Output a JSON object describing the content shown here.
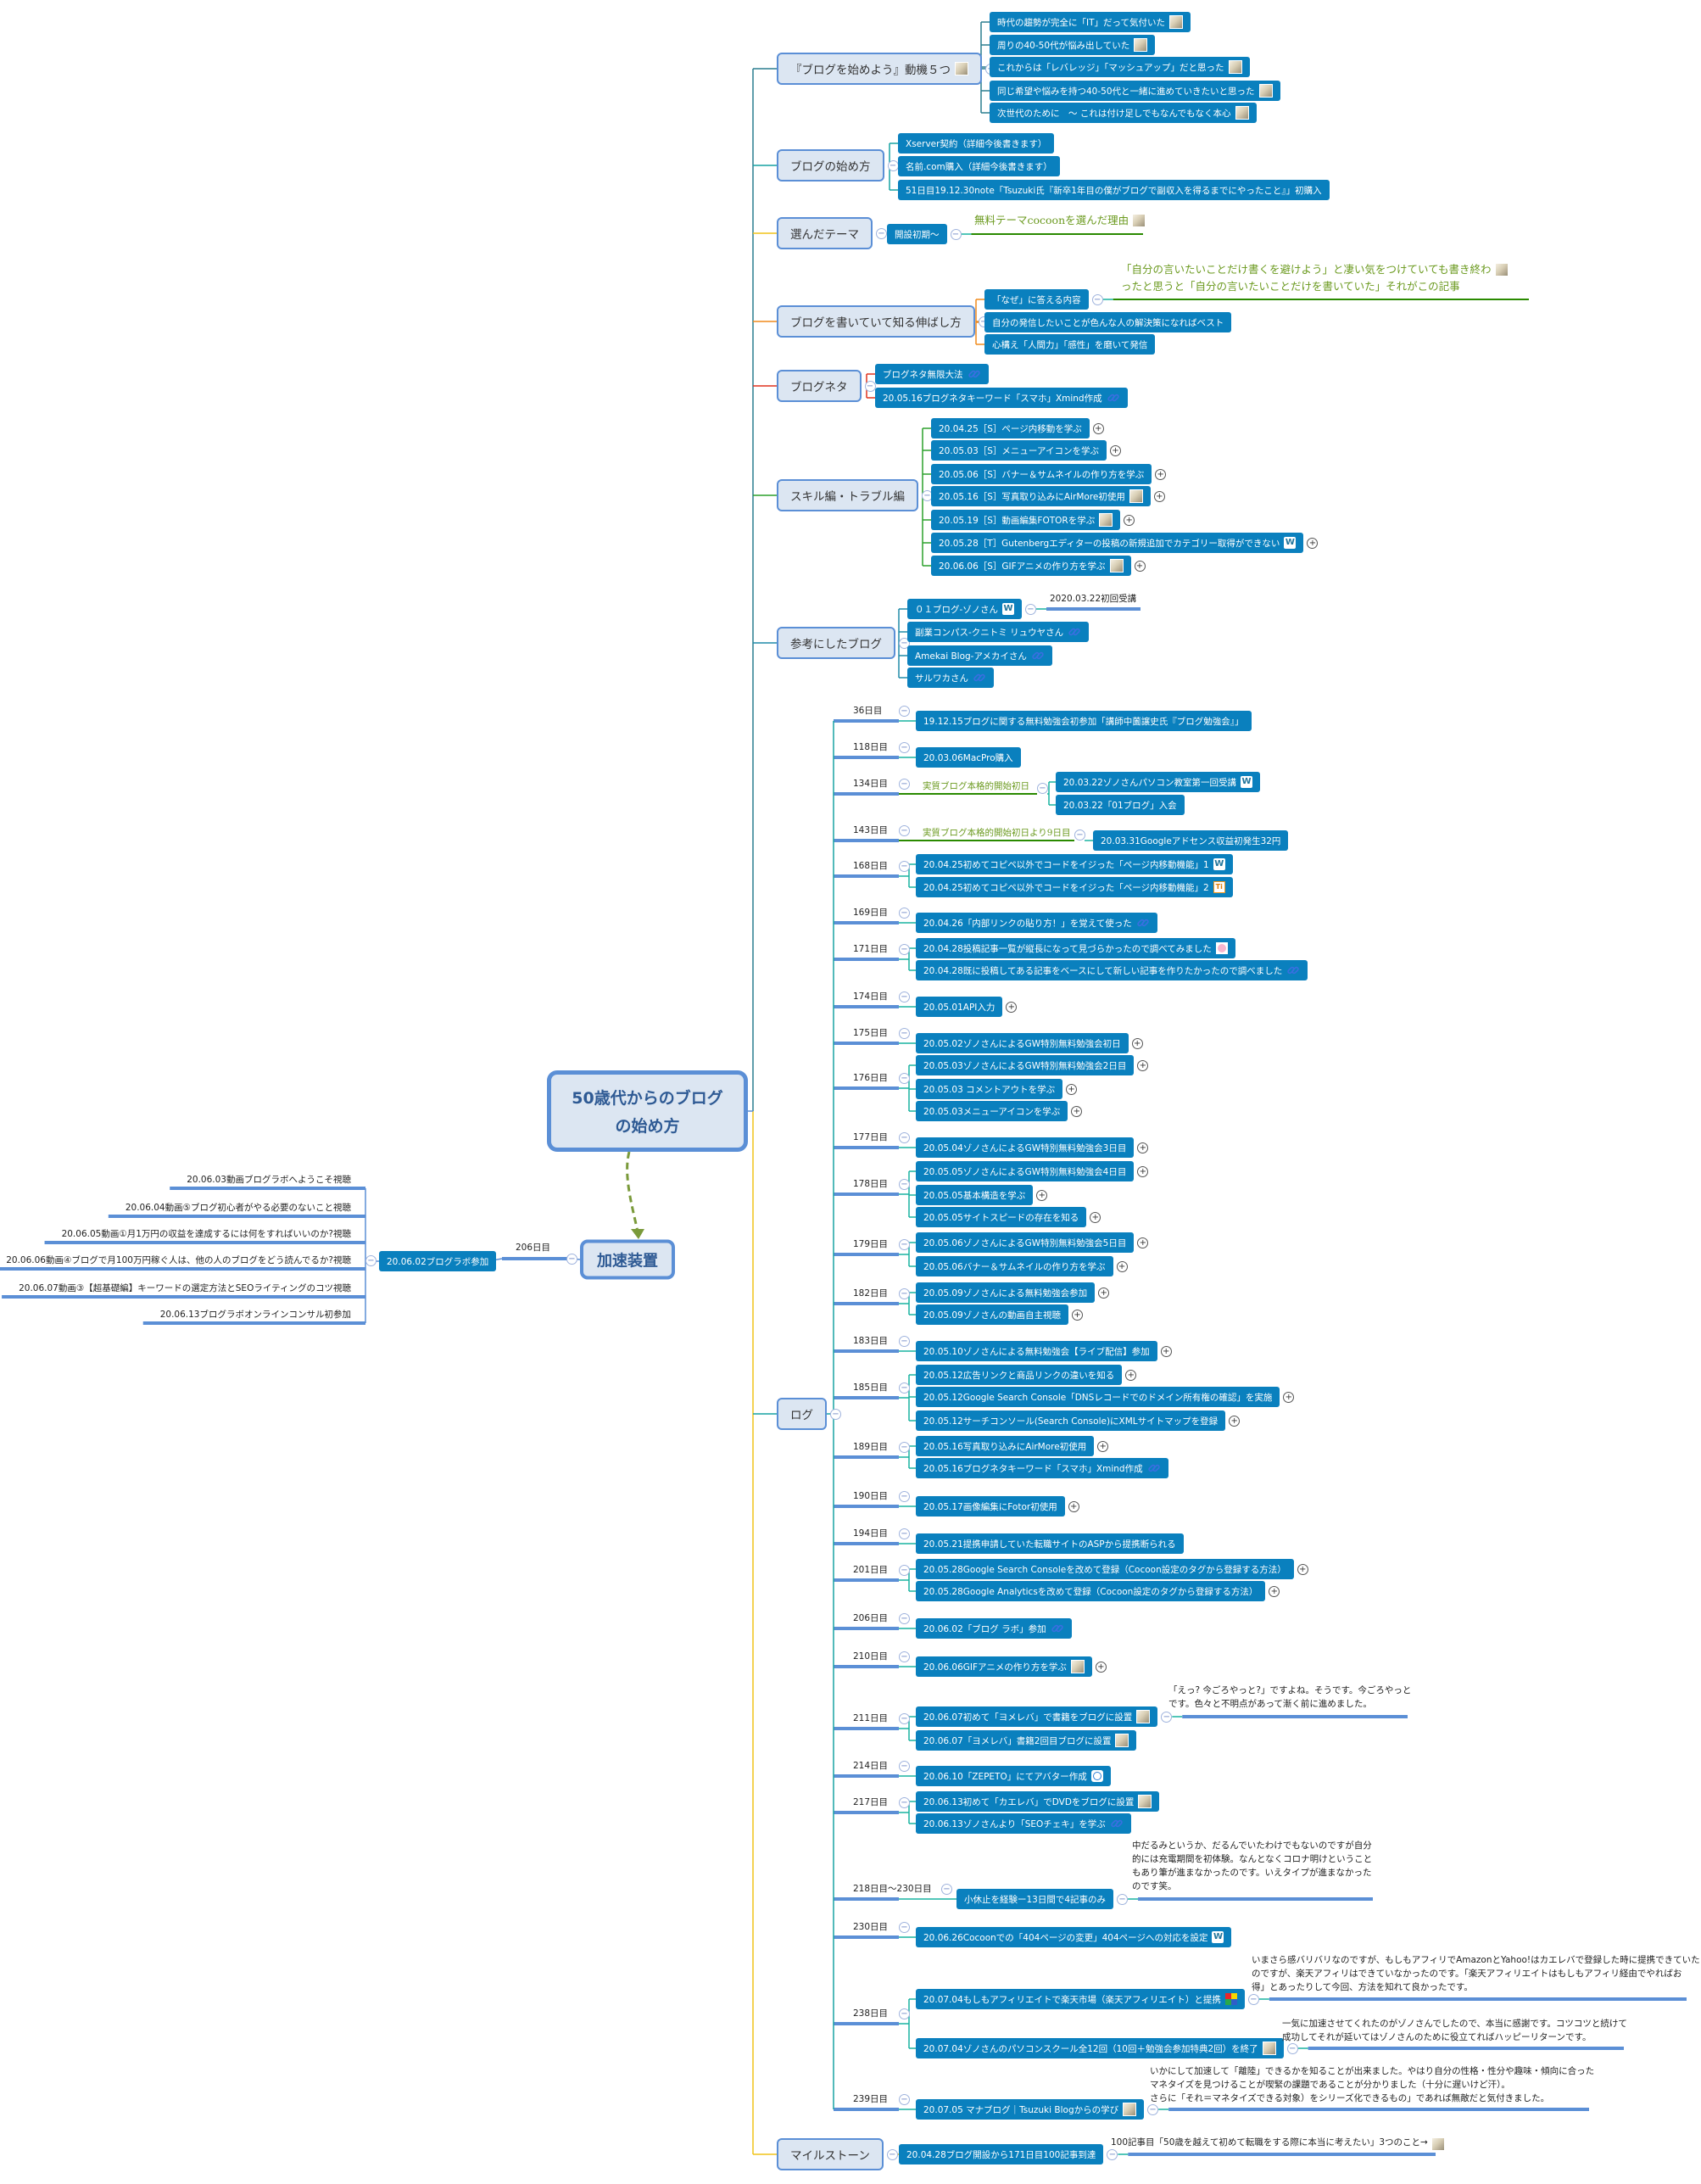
{
  "central": {
    "line1": "50歳代からのブログ",
    "line2": "の始め方"
  },
  "accelerator": {
    "title": "加速装置",
    "day": "206日目",
    "event": {
      "text": "20.06.02ブログラボ参加"
    },
    "items": [
      "20.06.03動画ブログラボへようこそ視聴",
      "20.06.04動画⑤ブログ初心者がやる必要のないこと視聴",
      "20.06.05動画①月1万円の収益を達成するには何をすればいいのか?視聴",
      "20.06.06動画④ブログで月100万円稼ぐ人は、他の人のブログをどう読んでるか?視聴",
      "20.06.07動画③【超基礎編】キーワードの選定方法とSEOライティングのコツ視聴",
      "20.06.13ブログラボオンラインコンサル初参加"
    ]
  },
  "branches": [
    {
      "title": "『ブログを始めよう』動機５つ",
      "icon": "photo",
      "children": [
        {
          "text": "時代の趨勢が完全に「IT」だって気付いた",
          "icon": "photo"
        },
        {
          "text": "周りの40-50代が悩み出していた",
          "icon": "photo"
        },
        {
          "text": "これからは「レバレッジ」「マッシュアップ」だと思った",
          "icon": "photo"
        },
        {
          "text": "同じ希望や悩みを持つ40-50代と一緒に進めていきたいと思った",
          "icon": "photo"
        },
        {
          "text": "次世代のために　～ これは付け足しでもなんでもなく本心",
          "icon": "photo"
        }
      ]
    },
    {
      "title": "ブログの始め方",
      "children": [
        {
          "text": "Xserver契約（詳細今後書きます）"
        },
        {
          "text": "名前.com購入（詳細今後書きます）"
        },
        {
          "text": "51日目19.12.30note「Tsuzuki氏『新卒1年目の僕がブログで副収入を得るまでにやったこと』」初購入"
        }
      ]
    },
    {
      "title": "選んだテーマ",
      "children": [
        {
          "text": "開設初期～",
          "note": [
            "無料テーマcocoonを選んだ理由"
          ],
          "note_icon": "photo",
          "note_color": "#6b9a1f"
        }
      ]
    },
    {
      "title": "ブログを書いていて知る伸ばし方",
      "children": [
        {
          "text": "「なぜ」に答える内容",
          "note": [
            "「自分の言いたいことだけ書くを避けよう」と凄い気をつけていても書き終わ",
            "ったと思うと「自分の言いたいことだけを書いていた」それがこの記事"
          ],
          "note_icon": "photo",
          "note_color": "#6b9a1f"
        },
        {
          "text": "自分の発信したいことが色んな人の解決策になればベスト"
        },
        {
          "text": "心構え「人間力」「感性」を磨いて発信"
        }
      ]
    },
    {
      "title": "ブログネタ",
      "children": [
        {
          "text": "ブログネタ無限大法",
          "icon": "link"
        },
        {
          "text": "20.05.16ブログネタキーワード「スマホ」Xmind作成",
          "icon": "link"
        }
      ]
    },
    {
      "title": "スキル編・トラブル編",
      "children": [
        {
          "text": "20.04.25［S］ページ内移動を学ぶ",
          "expand": "+"
        },
        {
          "text": "20.05.03［S］メニューアイコンを学ぶ",
          "expand": "+"
        },
        {
          "text": "20.05.06［S］バナー＆サムネイルの作り方を学ぶ",
          "expand": "+"
        },
        {
          "text": "20.05.16［S］写真取り込みにAirMore初使用",
          "icon": "photo",
          "expand": "+"
        },
        {
          "text": "20.05.19［S］動画編集FOTORを学ぶ",
          "icon": "photo",
          "expand": "+"
        },
        {
          "text": "20.05.28［T］Gutenbergエディターの投稿の新規追加でカテゴリー取得ができない",
          "icon": "wordpress",
          "expand": "+"
        },
        {
          "text": "20.06.06［S］GIFアニメの作り方を学ぶ",
          "icon": "photo",
          "expand": "+"
        }
      ]
    },
    {
      "title": "参考にしたブログ",
      "children": [
        {
          "text": "０１ブログ-ゾノさん",
          "icon": "wordpress",
          "note": [
            "2020.03.22初回受講"
          ]
        },
        {
          "text": "副業コンパス-クニトミ リュウヤさん",
          "icon": "link"
        },
        {
          "text": "Amekai Blog-アメカイさん",
          "icon": "link"
        },
        {
          "text": "サルワカさん",
          "icon": "link"
        }
      ]
    },
    {
      "title": "マイルストーン",
      "children": [
        {
          "text": "20.04.28ブログ開設から171日目100記事到達",
          "note": [
            "100記事目「50歳を越えて初めて転職をする際に本当に考えたい」3つのこと→"
          ],
          "note_icon": "photo"
        }
      ]
    }
  ],
  "log": {
    "title": "ログ",
    "days": [
      {
        "day": "36日目",
        "items": [
          {
            "text": "19.12.15ブログに関する無料勉強会初参加「講師中薗譲史氏『ブログ勉強会』」"
          }
        ]
      },
      {
        "day": "118日目",
        "items": [
          {
            "text": "20.03.06MacPro購入"
          }
        ]
      },
      {
        "day": "134日目",
        "note": "実質ブログ本格的開始初日",
        "items": [
          {
            "text": "20.03.22ゾノさんパソコン教室第一回受講",
            "icon": "wordpress"
          },
          {
            "text": "20.03.22「01ブログ」入会"
          }
        ]
      },
      {
        "day": "143日目",
        "note": "実質ブログ本格的開始初日より9日目",
        "items": [
          {
            "text": "20.03.31Googleアドセンス収益初発生32円"
          }
        ]
      },
      {
        "day": "168日目",
        "items": [
          {
            "text": "20.04.25初めてコピペ以外でコードをイジった「ページ内移動機能」1",
            "icon": "wordpress"
          },
          {
            "text": "20.04.25初めてコピペ以外でコードをイジった「ページ内移動機能」2",
            "icon": "ti"
          }
        ]
      },
      {
        "day": "169日目",
        "items": [
          {
            "text": "20.04.26「内部リンクの貼り方！」を覚えて使った",
            "icon": "link"
          }
        ]
      },
      {
        "day": "171日目",
        "items": [
          {
            "text": "20.04.28投稿記事一覧が縦長になって見づらかったので調べてみました",
            "icon": "pink"
          },
          {
            "text": "20.04.28既に投稿してある記事をベースにして新しい記事を作りたかったので調べました",
            "icon": "link"
          }
        ]
      },
      {
        "day": "174日目",
        "items": [
          {
            "text": "20.05.01API入力",
            "expand": "+"
          }
        ]
      },
      {
        "day": "175日目",
        "items": [
          {
            "text": "20.05.02ゾノさんによるGW特別無料勉強会初日",
            "expand": "+"
          }
        ]
      },
      {
        "day": "176日目",
        "items": [
          {
            "text": "20.05.03ゾノさんによるGW特別無料勉強会2日目",
            "expand": "+"
          },
          {
            "text": "20.05.03 コメントアウトを学ぶ",
            "expand": "+"
          },
          {
            "text": "20.05.03メニューアイコンを学ぶ",
            "expand": "+"
          }
        ]
      },
      {
        "day": "177日目",
        "items": [
          {
            "text": "20.05.04ゾノさんによるGW特別無料勉強会3日目",
            "expand": "+"
          }
        ]
      },
      {
        "day": "178日目",
        "items": [
          {
            "text": "20.05.05ゾノさんによるGW特別無料勉強会4日目",
            "expand": "+"
          },
          {
            "text": "20.05.05基本構造を学ぶ",
            "expand": "+"
          },
          {
            "text": "20.05.05サイトスピードの存在を知る",
            "expand": "+"
          }
        ]
      },
      {
        "day": "179日目",
        "items": [
          {
            "text": "20.05.06ゾノさんによるGW特別無料勉強会5日目",
            "expand": "+"
          },
          {
            "text": "20.05.06バナー＆サムネイルの作り方を学ぶ",
            "expand": "+"
          }
        ]
      },
      {
        "day": "182日目",
        "items": [
          {
            "text": "20.05.09ゾノさんによる無料勉強会参加",
            "expand": "+"
          },
          {
            "text": "20.05.09ゾノさんの動画自主視聴",
            "expand": "+"
          }
        ]
      },
      {
        "day": "183日目",
        "items": [
          {
            "text": "20.05.10ゾノさんによる無料勉強会【ライブ配信】参加",
            "expand": "+"
          }
        ]
      },
      {
        "day": "185日目",
        "items": [
          {
            "text": "20.05.12広告リンクと商品リンクの違いを知る",
            "expand": "+"
          },
          {
            "text": "20.05.12Google Search Console「DNSレコードでのドメイン所有権の確認」を実施",
            "expand": "+"
          },
          {
            "text": "20.05.12サーチコンソール(Search Console)にXMLサイトマップを登録",
            "expand": "+"
          }
        ]
      },
      {
        "day": "189日目",
        "items": [
          {
            "text": "20.05.16写真取り込みにAirMore初使用",
            "expand": "+"
          },
          {
            "text": "20.05.16ブログネタキーワード「スマホ」Xmind作成",
            "icon": "link"
          }
        ]
      },
      {
        "day": "190日目",
        "items": [
          {
            "text": "20.05.17画像編集にFotor初使用",
            "expand": "+"
          }
        ]
      },
      {
        "day": "194日目",
        "items": [
          {
            "text": "20.05.21提携申請していた転職サイトのASPから提携断られる"
          }
        ]
      },
      {
        "day": "201日目",
        "items": [
          {
            "text": "20.05.28Google Search Consoleを改めて登録（Cocoon設定のタグから登録する方法）",
            "expand": "+"
          },
          {
            "text": "20.05.28Google Analyticsを改めて登録（Cocoon設定のタグから登録する方法）",
            "expand": "+"
          }
        ]
      },
      {
        "day": "206日目",
        "items": [
          {
            "text": "20.06.02「ブログ ラボ」参加",
            "icon": "link"
          }
        ]
      },
      {
        "day": "210日目",
        "items": [
          {
            "text": "20.06.06GIFアニメの作り方を学ぶ",
            "icon": "photo",
            "expand": "+"
          }
        ]
      },
      {
        "day": "211日目",
        "items": [
          {
            "text": "20.06.07初めて「ヨメレバ」で書籍をブログに設置",
            "icon": "photo",
            "note": [
              "「えっ? 今ごろやっと?」ですよね。そうです。今ごろやっと",
              "です。色々と不明点があって漸く前に進めました。"
            ]
          },
          {
            "text": "20.06.07「ヨメレバ」書籍2回目ブログに設置",
            "icon": "photo"
          }
        ]
      },
      {
        "day": "214日目",
        "items": [
          {
            "text": "20.06.10「ZEPETO」にてアバター作成",
            "icon": "zepeto"
          }
        ]
      },
      {
        "day": "217日目",
        "items": [
          {
            "text": "20.06.13初めて「カエレバ」でDVDをブログに設置",
            "icon": "photo"
          },
          {
            "text": "20.06.13ゾノさんより「SEOチェキ」を学ぶ",
            "icon": "link"
          }
        ]
      },
      {
        "day": "218日目～230日目",
        "items": [
          {
            "text": "小休止を経験ー13日間で4記事のみ",
            "note": [
              "中だるみというか、だるんでいたわけでもないのですが自分",
              "的には充電期間を初体験。なんとなくコロナ明けということ",
              "もあり筆が進まなかったのです。いえタイプが進まなかった",
              "のです笑。"
            ]
          }
        ]
      },
      {
        "day": "230日目",
        "items": [
          {
            "text": "20.06.26Cocoonでの「404ページの変更」404ページへの対応を設定",
            "icon": "wordpress"
          }
        ]
      },
      {
        "day": "238日目",
        "items": [
          {
            "text": "20.07.04もしもアフィリエイトで楽天市場（楽天アフィリエイト）と提携",
            "icon": "rakuten",
            "note": [
              "いまさら感バリバリなのですが、もしもアフィリでAmazonとYahoo!はカエレバで登録した時に提携できていた",
              "のですが、楽天アフィリはできていなかったのです。「楽天アフィリエイトはもしもアフィリ経由でやればお",
              "得」とあったりして今回、方法を知れて良かったです。"
            ]
          },
          {
            "text": "20.07.04ゾノさんのパソコンスクール全12回（10回＋勉強会参加特典2回）を終了",
            "icon": "photo",
            "note": [
              "一気に加速させてくれたのがゾノさんでしたので、本当に感謝です。コツコツと続けて",
              "成功してそれが延いてはゾノさんのために役立てればハッピーリターンです。"
            ]
          }
        ]
      },
      {
        "day": "239日目",
        "items": [
          {
            "text": "20.07.05 マナブログ｜Tsuzuki Blogからの学び",
            "icon": "photo",
            "note": [
              "いかにして加速して「離陸」できるかを知ることが出来ました。やはり自分の性格・性分や趣味・傾向に合った",
              "マネタイズを見つけることが喫緊の課題であることが分かりました（十分に遅いけど汗）。",
              "さらに「それ＝マネタイズできる対象）をシリーズ化できるもの」であれば無敵だと気付きました。"
            ]
          }
        ]
      }
    ]
  },
  "colors": {
    "topic_fill": "#dce6f2",
    "topic_border": "#5b8fd6",
    "subtopic_fill": "#0a80be",
    "relationship_arrow": "#7a9a3a",
    "note_green": "#6b9a1f"
  }
}
